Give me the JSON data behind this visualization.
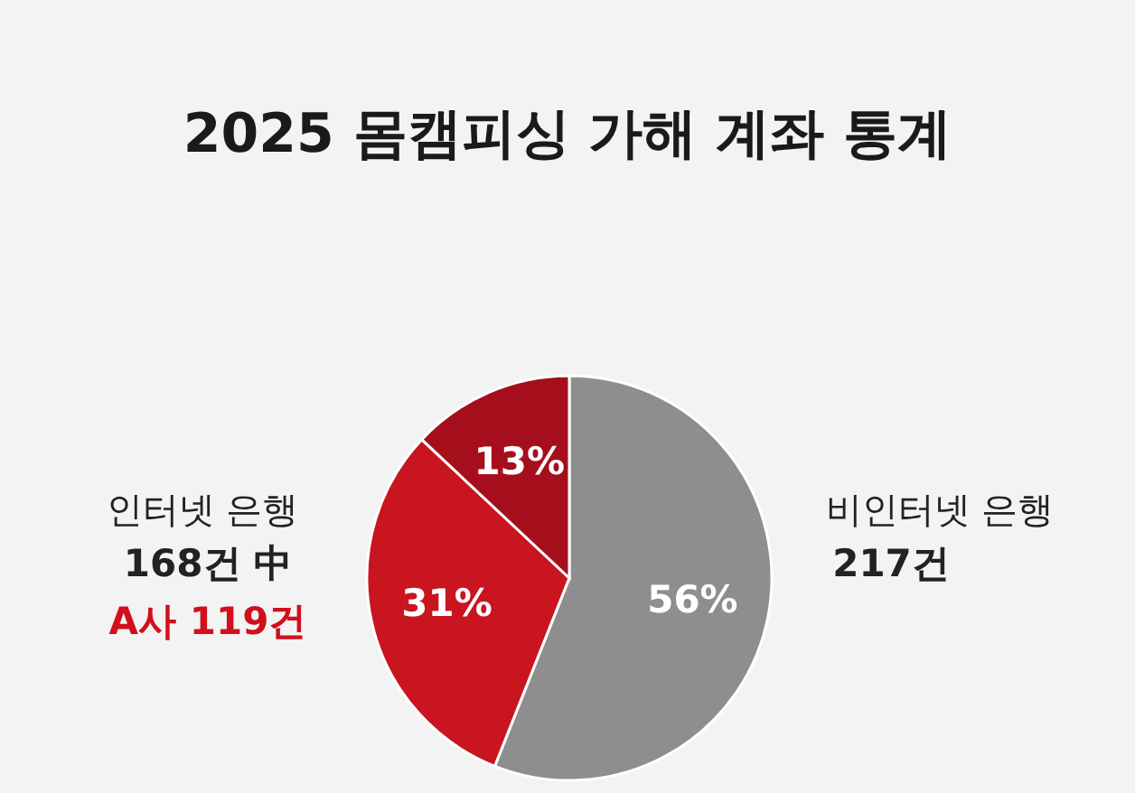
{
  "chart_data": {
    "type": "pie",
    "title": "2025 몸캠피싱 가해 계좌 통계",
    "categories": [
      null,
      null,
      null
    ],
    "values": [
      56,
      31,
      13
    ],
    "colors": [
      "#8e8e8e",
      "#c8151f",
      "#a50f1c"
    ],
    "value_labels": [
      "56%",
      "31%",
      "13%"
    ],
    "annotations": [
      "인터넷 은행",
      "168건 中",
      "A사 119건",
      "비인터넷 은행",
      "217건"
    ],
    "legend": false
  }
}
